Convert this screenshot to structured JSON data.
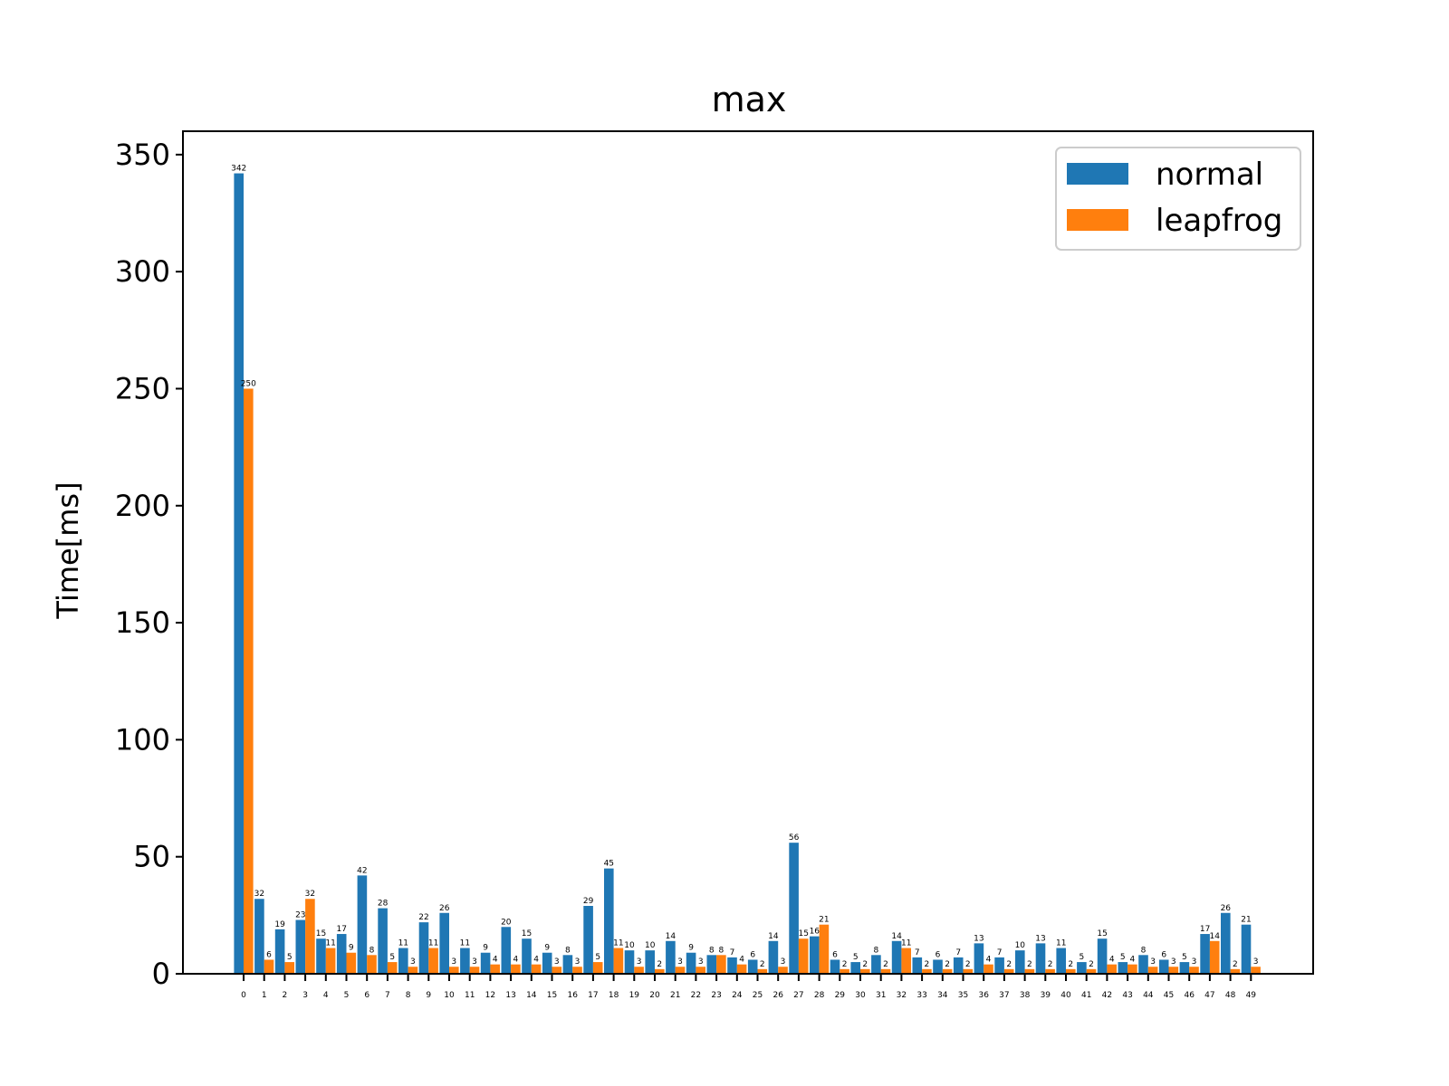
{
  "chart_data": {
    "type": "bar",
    "title": "max",
    "xlabel": "",
    "ylabel": "Time[ms]",
    "ylim": [
      0,
      360
    ],
    "yticks": [
      0,
      50,
      100,
      150,
      200,
      250,
      300,
      350
    ],
    "grid": false,
    "legend_position": "top-right",
    "categories": [
      "0",
      "1",
      "2",
      "3",
      "4",
      "5",
      "6",
      "7",
      "8",
      "9",
      "10",
      "11",
      "12",
      "13",
      "14",
      "15",
      "16",
      "17",
      "18",
      "19",
      "20",
      "21",
      "22",
      "23",
      "24",
      "25",
      "26",
      "27",
      "28",
      "29",
      "30",
      "31",
      "32",
      "33",
      "34",
      "35",
      "36",
      "37",
      "38",
      "39",
      "40",
      "41",
      "42",
      "43",
      "44",
      "45",
      "46",
      "47",
      "48",
      "49"
    ],
    "series": [
      {
        "name": "normal",
        "color": "#1f77b4",
        "values": [
          342,
          32,
          19,
          23,
          15,
          17,
          42,
          28,
          11,
          22,
          26,
          11,
          9,
          20,
          15,
          9,
          8,
          29,
          45,
          10,
          10,
          14,
          9,
          8,
          7,
          6,
          14,
          56,
          16,
          6,
          5,
          8,
          14,
          7,
          6,
          7,
          13,
          7,
          10,
          13,
          11,
          5,
          15,
          5,
          8,
          6,
          5,
          17,
          26,
          21
        ]
      },
      {
        "name": "leapfrog",
        "color": "#ff7f0e",
        "values": [
          250,
          6,
          5,
          32,
          11,
          9,
          8,
          5,
          3,
          11,
          3,
          3,
          4,
          4,
          4,
          3,
          3,
          5,
          11,
          3,
          2,
          3,
          3,
          8,
          4,
          2,
          3,
          15,
          21,
          2,
          2,
          2,
          11,
          2,
          2,
          2,
          4,
          2,
          2,
          2,
          2,
          2,
          4,
          4,
          3,
          3,
          3,
          14,
          2,
          3
        ]
      }
    ]
  }
}
